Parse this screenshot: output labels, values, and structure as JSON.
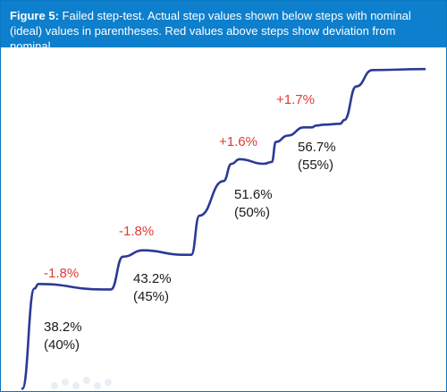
{
  "caption": {
    "label": "Figure 5:",
    "text": " Failed step-test. Actual step values shown below steps with nominal (ideal) values in parentheses. Red values above steps show deviation from nominal."
  },
  "colors": {
    "caption_bg": "#0d7fcc",
    "line": "#2b3a96",
    "deviation": "#e03a32",
    "value_text": "#1a1a1a"
  },
  "chart_data": {
    "type": "line",
    "title": "",
    "xlabel": "",
    "ylabel": "",
    "grid": false,
    "axes_visible": false,
    "ylim": [
      30,
      65
    ],
    "xlim": [
      0,
      100
    ],
    "series": [
      {
        "color": "#2b3a96",
        "x": [
          0,
          3,
          4,
          20,
          22,
          25,
          30,
          40,
          42,
          44,
          50,
          52,
          54,
          60,
          62,
          63,
          66,
          70,
          72,
          73,
          75,
          79,
          80,
          83,
          87,
          100
        ],
        "y": [
          28.5,
          39.5,
          40.0,
          39.4,
          39.4,
          43.0,
          43.7,
          43.2,
          43.2,
          47.5,
          51.3,
          53.2,
          53.7,
          53.2,
          53.4,
          55.6,
          56.3,
          57.2,
          57.2,
          57.4,
          57.5,
          57.6,
          58.0,
          61.7,
          63.5,
          63.6
        ]
      }
    ],
    "steps": [
      {
        "actual": "38.2%",
        "nominal": "(40%)",
        "deviation": "-1.8%",
        "actual_value": 38.2,
        "nominal_value": 40,
        "deviation_value": -1.8
      },
      {
        "actual": "43.2%",
        "nominal": "(45%)",
        "deviation": "-1.8%",
        "actual_value": 43.2,
        "nominal_value": 45,
        "deviation_value": -1.8
      },
      {
        "actual": "51.6%",
        "nominal": "(50%)",
        "deviation": "+1.6%",
        "actual_value": 51.6,
        "nominal_value": 50,
        "deviation_value": 1.6
      },
      {
        "actual": "56.7%",
        "nominal": "(55%)",
        "deviation": "+1.7%",
        "actual_value": 56.7,
        "nominal_value": 55,
        "deviation_value": 1.7
      }
    ]
  }
}
